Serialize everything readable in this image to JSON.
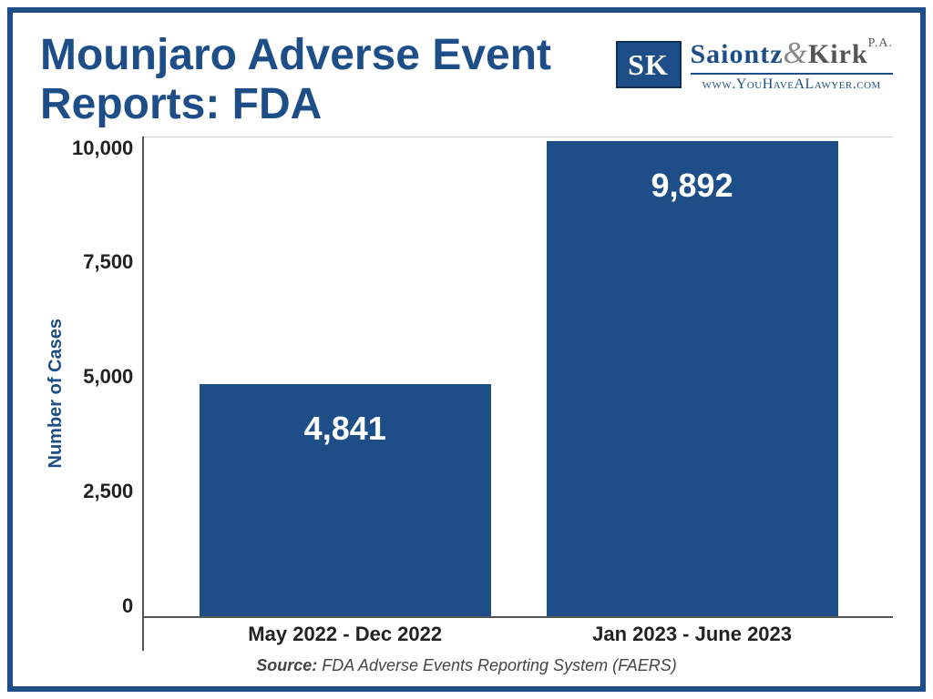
{
  "title": "Mounjaro Adverse Event Reports: FDA",
  "title_fontsize": 48,
  "title_color": "#1e4e87",
  "logo": {
    "badge_text": "SK",
    "firm_part1": "Saiontz",
    "firm_amp": "&",
    "firm_part2": "Kirk",
    "firm_suffix": "P.A.",
    "tagline_prefix": "www.",
    "tagline_mid": "YouHaveALawyer",
    "tagline_suffix": ".com"
  },
  "chart": {
    "type": "bar",
    "ylabel": "Number of Cases",
    "ylabel_fontsize": 20,
    "ylim": [
      0,
      10000
    ],
    "ytick_step": 2500,
    "yticks": [
      "10,000",
      "7,500",
      "5,000",
      "2,500",
      "0"
    ],
    "ytick_fontsize": 22,
    "categories": [
      "May 2022 - Dec 2022",
      "Jan 2023 - June 2023"
    ],
    "xlabel_fontsize": 22,
    "values": [
      4841,
      9892
    ],
    "value_labels": [
      "4,841",
      "9,892"
    ],
    "value_label_fontsize": 36,
    "bar_color": "#1e4e87",
    "bar_width_pct": 42,
    "background_color": "#ffffff",
    "grid_color": "#cccccc",
    "axis_color": "#555555"
  },
  "source": {
    "label": "Source:",
    "text": " FDA Adverse Events Reporting System (FAERS)",
    "fontsize": 18
  }
}
